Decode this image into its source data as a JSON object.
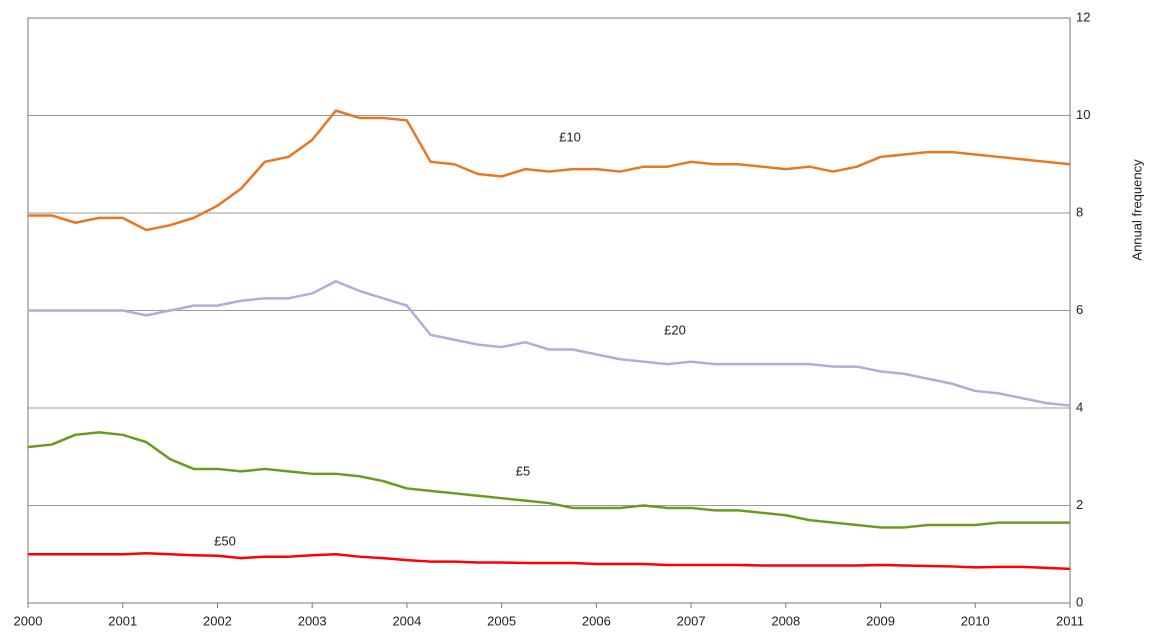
{
  "chart_data": {
    "type": "line",
    "y_label": "Annual frequency",
    "x": [
      2000,
      2000.25,
      2000.5,
      2000.75,
      2001,
      2001.25,
      2001.5,
      2001.75,
      2002,
      2002.25,
      2002.5,
      2002.75,
      2003,
      2003.25,
      2003.5,
      2003.75,
      2004,
      2004.25,
      2004.5,
      2004.75,
      2005,
      2005.25,
      2005.5,
      2005.75,
      2006,
      2006.25,
      2006.5,
      2006.75,
      2007,
      2007.25,
      2007.5,
      2007.75,
      2008,
      2008.25,
      2008.5,
      2008.75,
      2009,
      2009.25,
      2009.5,
      2009.75,
      2010,
      2010.25,
      2010.5,
      2010.75,
      2011
    ],
    "series": [
      {
        "name": "£10",
        "color": "#e87722",
        "values": [
          7.95,
          7.95,
          7.8,
          7.9,
          7.9,
          7.65,
          7.75,
          7.9,
          8.15,
          8.5,
          9.05,
          9.15,
          9.5,
          10.1,
          9.95,
          9.95,
          9.9,
          9.05,
          9.0,
          8.8,
          8.75,
          8.9,
          8.85,
          8.9,
          8.9,
          8.85,
          8.95,
          8.95,
          9.05,
          9.0,
          9.0,
          8.95,
          8.9,
          8.95,
          8.85,
          8.95,
          9.15,
          9.2,
          9.25,
          9.25,
          9.2,
          9.15,
          9.1,
          9.05,
          9.0
        ]
      },
      {
        "name": "£20",
        "color": "#b8a9d6",
        "values": [
          6.0,
          6.0,
          6.0,
          6.0,
          6.0,
          5.9,
          6.0,
          6.1,
          6.1,
          6.2,
          6.25,
          6.25,
          6.35,
          6.6,
          6.4,
          6.25,
          6.1,
          5.5,
          5.4,
          5.3,
          5.25,
          5.35,
          5.2,
          5.2,
          5.1,
          5.0,
          4.95,
          4.9,
          4.95,
          4.9,
          4.9,
          4.9,
          4.9,
          4.9,
          4.85,
          4.85,
          4.75,
          4.7,
          4.6,
          4.5,
          4.35,
          4.3,
          4.2,
          4.1,
          4.05
        ]
      },
      {
        "name": "£5",
        "color": "#6b9b1e",
        "values": [
          3.2,
          3.25,
          3.45,
          3.5,
          3.45,
          3.3,
          2.95,
          2.75,
          2.75,
          2.7,
          2.75,
          2.7,
          2.65,
          2.65,
          2.6,
          2.5,
          2.35,
          2.3,
          2.25,
          2.2,
          2.15,
          2.1,
          2.05,
          1.95,
          1.95,
          1.95,
          2.0,
          1.95,
          1.95,
          1.9,
          1.9,
          1.85,
          1.8,
          1.7,
          1.65,
          1.6,
          1.55,
          1.55,
          1.6,
          1.6,
          1.6,
          1.65,
          1.65,
          1.65,
          1.65
        ]
      },
      {
        "name": "£50",
        "color": "#ff0000",
        "values": [
          1.0,
          1.0,
          1.0,
          1.0,
          1.0,
          1.02,
          1.0,
          0.98,
          0.97,
          0.92,
          0.95,
          0.95,
          0.98,
          1.0,
          0.95,
          0.92,
          0.88,
          0.85,
          0.85,
          0.83,
          0.83,
          0.82,
          0.82,
          0.82,
          0.8,
          0.8,
          0.8,
          0.78,
          0.78,
          0.78,
          0.78,
          0.77,
          0.77,
          0.77,
          0.77,
          0.77,
          0.78,
          0.77,
          0.76,
          0.75,
          0.73,
          0.74,
          0.74,
          0.72,
          0.7
        ]
      }
    ],
    "xlim": [
      2000,
      2011
    ],
    "xticks": [
      2000,
      2001,
      2002,
      2003,
      2004,
      2005,
      2006,
      2007,
      2008,
      2009,
      2010,
      2011
    ],
    "ylim": [
      0,
      12
    ],
    "yticks": [
      0,
      2,
      4,
      6,
      8,
      10,
      12
    ],
    "grid": true
  }
}
